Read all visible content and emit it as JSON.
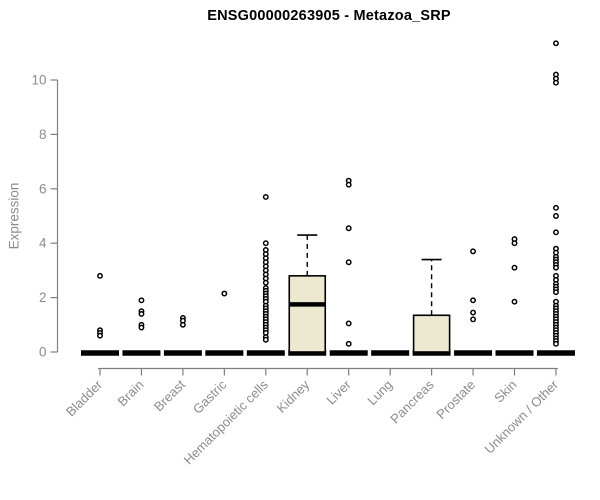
{
  "chart_data": {
    "type": "boxplot",
    "title": "ENSG00000263905 - Metazoa_SRP",
    "ylabel": "Expression",
    "xlabel": "",
    "ylim": [
      0,
      10
    ],
    "yticks": [
      0,
      2,
      4,
      6,
      8,
      10
    ],
    "grid": false,
    "legend": "none",
    "categories": [
      "Bladder",
      "Brain",
      "Breast",
      "Gastric",
      "Hematopoietic cells",
      "Kidney",
      "Liver",
      "Lung",
      "Pancreas",
      "Prostate",
      "Skin",
      "Unknown / Other"
    ],
    "boxes": [
      {
        "category": "Bladder",
        "q1": 0,
        "median": 0,
        "q3": 0,
        "whisker_low": 0,
        "whisker_high": 0,
        "outliers": [
          2.8,
          0.8,
          0.7,
          0.6
        ]
      },
      {
        "category": "Brain",
        "q1": 0,
        "median": 0,
        "q3": 0,
        "whisker_low": 0,
        "whisker_high": 0,
        "outliers": [
          1.9,
          1.5,
          1.4,
          1.0,
          0.9
        ]
      },
      {
        "category": "Breast",
        "q1": 0,
        "median": 0,
        "q3": 0,
        "whisker_low": 0,
        "whisker_high": 0,
        "outliers": [
          1.25,
          1.15,
          1.0
        ]
      },
      {
        "category": "Gastric",
        "q1": 0,
        "median": 0,
        "q3": 0,
        "whisker_low": 0,
        "whisker_high": 0,
        "outliers": [
          2.15
        ]
      },
      {
        "category": "Hematopoietic cells",
        "q1": 0,
        "median": 0,
        "q3": 0,
        "whisker_low": 0,
        "whisker_high": 0,
        "outliers": [
          5.7,
          4.0,
          3.75,
          3.6,
          3.45,
          3.3,
          3.15,
          3.0,
          2.85,
          2.7,
          2.55,
          2.35,
          2.25,
          2.15,
          2.05,
          1.95,
          1.85,
          1.7,
          1.6,
          1.5,
          1.4,
          1.3,
          1.2,
          1.1,
          1.0,
          0.9,
          0.8,
          0.7,
          0.55,
          0.45
        ]
      },
      {
        "category": "Kidney",
        "q1": 0,
        "median": 1.75,
        "q3": 2.8,
        "whisker_low": 0,
        "whisker_high": 4.3,
        "outliers": []
      },
      {
        "category": "Liver",
        "q1": 0,
        "median": 0,
        "q3": 0,
        "whisker_low": 0,
        "whisker_high": 0,
        "outliers": [
          6.3,
          6.15,
          4.55,
          3.3,
          1.05,
          0.3
        ]
      },
      {
        "category": "Lung",
        "q1": 0,
        "median": 0,
        "q3": 0,
        "whisker_low": 0,
        "whisker_high": 0,
        "outliers": []
      },
      {
        "category": "Pancreas",
        "q1": 0,
        "median": 0,
        "q3": 1.35,
        "whisker_low": 0,
        "whisker_high": 3.4,
        "outliers": []
      },
      {
        "category": "Prostate",
        "q1": 0,
        "median": 0,
        "q3": 0,
        "whisker_low": 0,
        "whisker_high": 0,
        "outliers": [
          3.7,
          1.9,
          1.45,
          1.2
        ]
      },
      {
        "category": "Skin",
        "q1": 0,
        "median": 0,
        "q3": 0,
        "whisker_low": 0,
        "whisker_high": 0,
        "outliers": [
          4.15,
          4.0,
          3.1,
          1.85
        ]
      },
      {
        "category": "Unknown / Other",
        "q1": 0,
        "median": 0,
        "q3": 0,
        "whisker_low": 0,
        "whisker_high": 0,
        "outliers": [
          11.35,
          10.2,
          10.05,
          9.9,
          5.3,
          5.0,
          4.4,
          3.8,
          3.65,
          3.5,
          3.4,
          3.3,
          3.2,
          3.1,
          2.8,
          2.65,
          2.5,
          2.4,
          2.3,
          2.2,
          1.85,
          1.7,
          1.6,
          1.5,
          1.4,
          1.3,
          1.2,
          1.1,
          1.0,
          0.9,
          0.8,
          0.7,
          0.6,
          0.5,
          0.4,
          0.3
        ]
      }
    ],
    "colors": {
      "box_fill": "#EDE8D0",
      "box_border": "#000000",
      "median": "#000000",
      "outlier": "#000000",
      "axis_line": "#808080",
      "axis_text": "#8C8C8C",
      "title": "#000000",
      "background": "#FFFFFF"
    }
  }
}
